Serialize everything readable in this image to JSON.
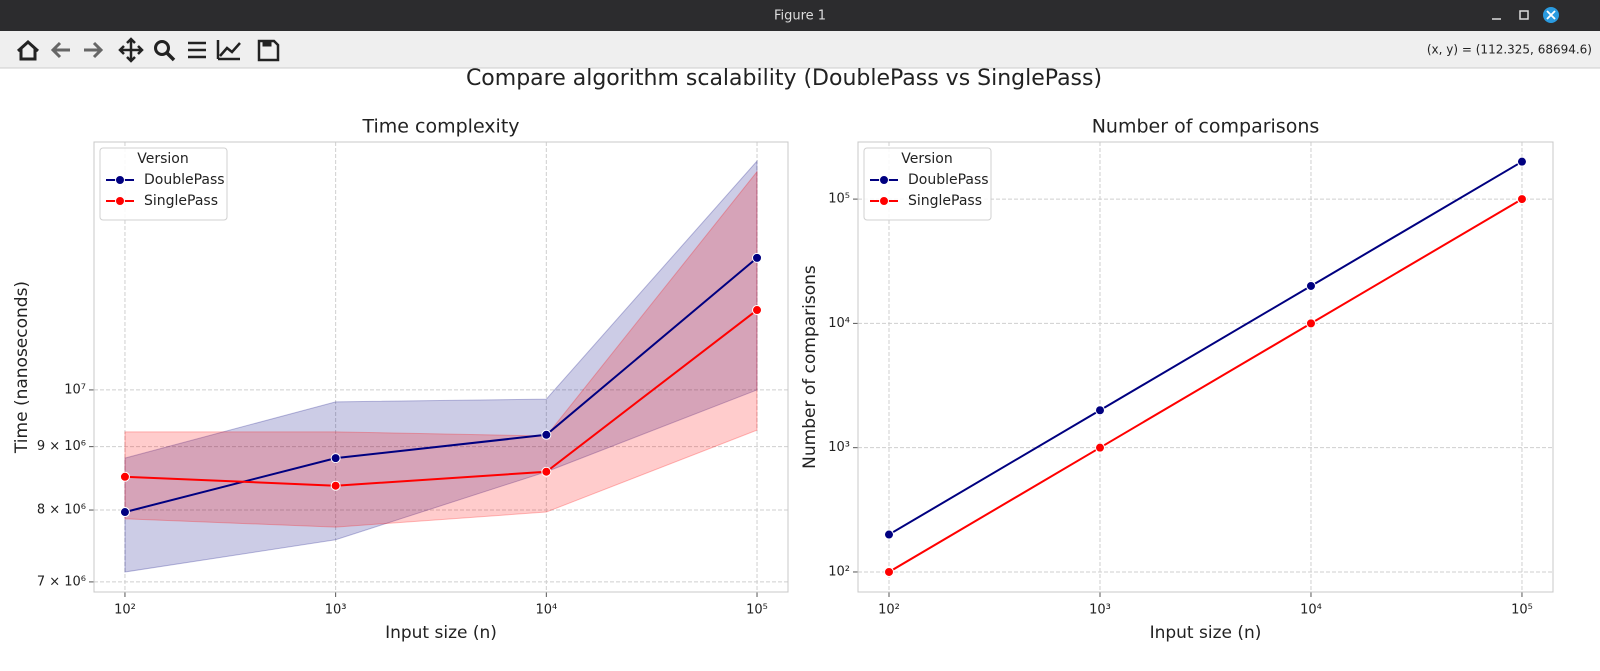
{
  "window": {
    "title": "Figure 1"
  },
  "toolbar": {
    "coordinates": "(x, y) = (112.325, 68694.6)"
  },
  "suptitle": "Compare algorithm scalability (DoublePass vs SinglePass)",
  "chart_data": [
    {
      "type": "line",
      "title": "Time complexity",
      "xlabel": "Input size (n)",
      "ylabel": "Time (nanoseconds)",
      "x": [
        100,
        1000,
        10000,
        100000
      ],
      "xlog": true,
      "ylog": true,
      "grid": true,
      "xlim": [
        71.3,
        140300
      ],
      "ylim": [
        6870000,
        15850000
      ],
      "xticks": [
        {
          "value": 100,
          "label": "10²"
        },
        {
          "value": 1000,
          "label": "10³"
        },
        {
          "value": 10000,
          "label": "10⁴"
        },
        {
          "value": 100000,
          "label": "10⁵"
        }
      ],
      "yticks": [
        {
          "value": 7000000,
          "label": "7 × 10⁶"
        },
        {
          "value": 8000000,
          "label": "8 × 10⁶"
        },
        {
          "value": 9000000,
          "label": "9 × 10⁶"
        },
        {
          "value": 10000000,
          "label": "10⁷"
        }
      ],
      "legend_title": "Version",
      "legend_loc": "upper left",
      "series": [
        {
          "name": "DoublePass",
          "color": "#000080",
          "values": [
            7970000,
            8810000,
            9200000,
            12780000
          ],
          "lower": [
            7130000,
            7570000,
            8590000,
            10000000
          ],
          "upper": [
            8810000,
            9780000,
            9830000,
            15300000
          ]
        },
        {
          "name": "SinglePass",
          "color": "#ff0000",
          "values": [
            8510000,
            8370000,
            8590000,
            11600000
          ],
          "lower": [
            7870000,
            7750000,
            7970000,
            9280000
          ],
          "upper": [
            9250000,
            9250000,
            9180000,
            15000000
          ]
        }
      ]
    },
    {
      "type": "line",
      "title": "Number of comparisons",
      "xlabel": "Input size (n)",
      "ylabel": "Number of comparisons",
      "x": [
        100,
        1000,
        10000,
        100000
      ],
      "xlog": true,
      "ylog": true,
      "grid": true,
      "xlim": [
        71.3,
        140300
      ],
      "ylim": [
        69,
        288000
      ],
      "xticks": [
        {
          "value": 100,
          "label": "10²"
        },
        {
          "value": 1000,
          "label": "10³"
        },
        {
          "value": 10000,
          "label": "10⁴"
        },
        {
          "value": 100000,
          "label": "10⁵"
        }
      ],
      "yticks": [
        {
          "value": 100,
          "label": "10²"
        },
        {
          "value": 1000,
          "label": "10³"
        },
        {
          "value": 10000,
          "label": "10⁴"
        },
        {
          "value": 100000,
          "label": "10⁵"
        }
      ],
      "legend_title": "Version",
      "legend_loc": "upper left",
      "series": [
        {
          "name": "DoublePass",
          "color": "#000080",
          "values": [
            200,
            2000,
            20000,
            200000
          ]
        },
        {
          "name": "SinglePass",
          "color": "#ff0000",
          "values": [
            100,
            1000,
            10000,
            100000
          ]
        }
      ]
    }
  ]
}
